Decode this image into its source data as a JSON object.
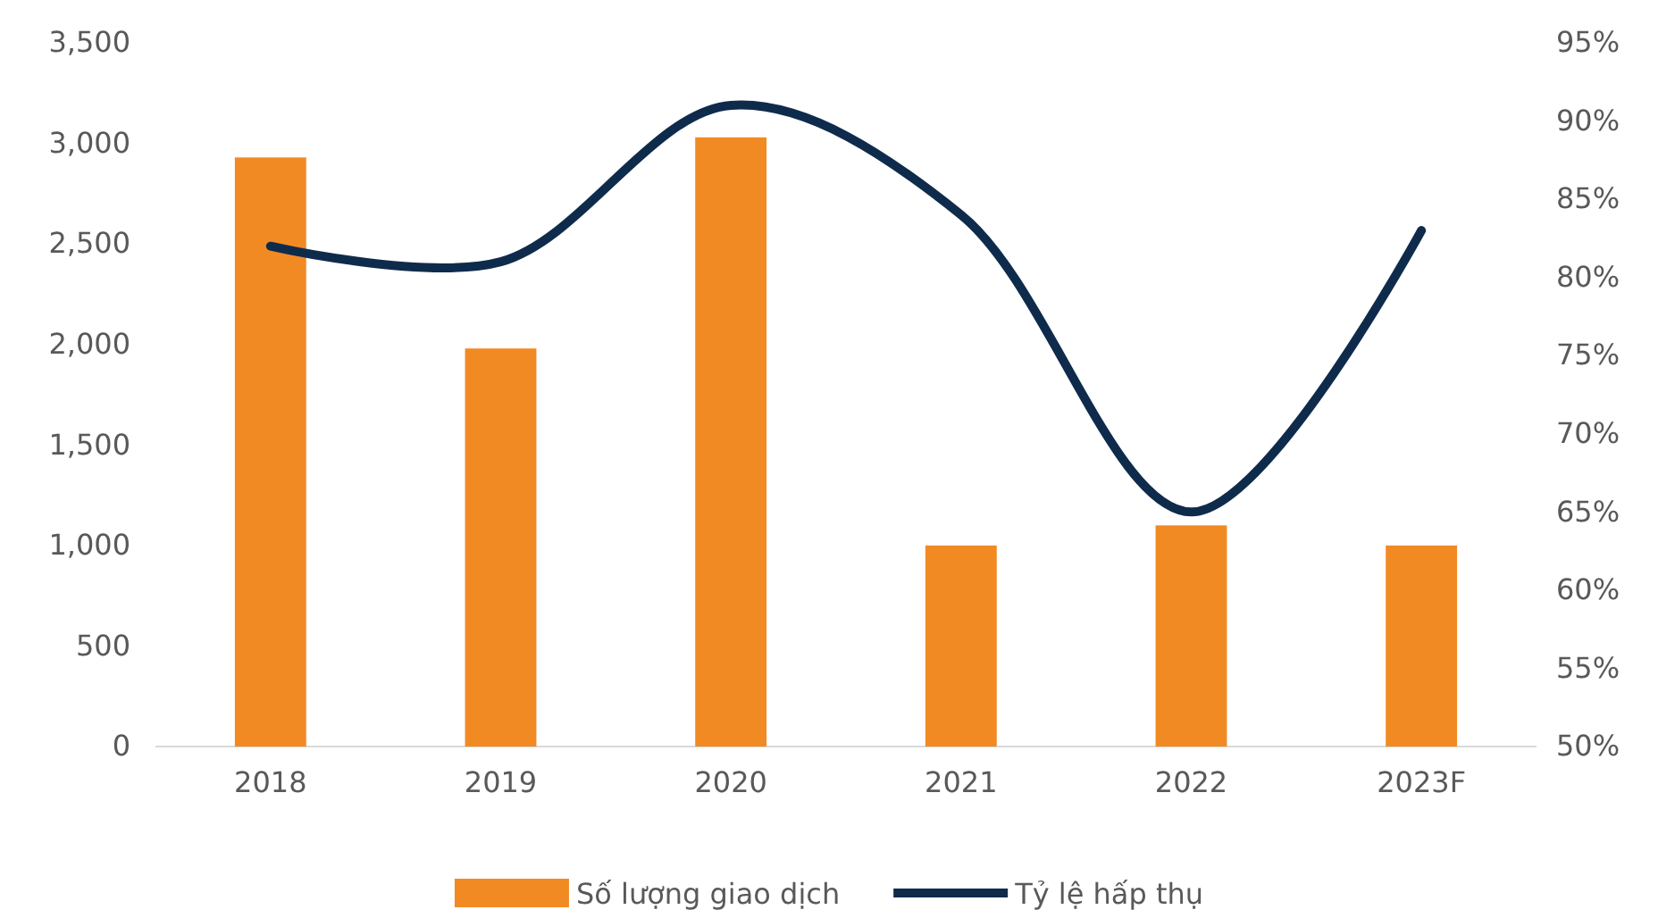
{
  "chart_data": {
    "type": "bar",
    "categories": [
      "2018",
      "2019",
      "2020",
      "2021",
      "2022",
      "2023F"
    ],
    "series": [
      {
        "name": "Số lượng giao dịch",
        "color": "#f28a24",
        "values": [
          2930,
          1980,
          3030,
          1000,
          1100,
          1000
        ]
      },
      {
        "name": "Tỷ lệ hấp thụ",
        "type": "line",
        "axis": "y2",
        "color": "#0f2b4c",
        "values": [
          82,
          81,
          91,
          84,
          65,
          83
        ]
      }
    ],
    "ylim": [
      0,
      3500
    ],
    "yticks": [
      0,
      500,
      {
        "value": 1000,
        "label": "1,000"
      },
      {
        "value": 1500,
        "label": "1,500"
      },
      {
        "value": 2000,
        "label": "2,000"
      },
      {
        "value": 2500,
        "label": "2,500"
      },
      {
        "value": 3000,
        "label": "3,000"
      },
      {
        "value": 3500,
        "label": "3,500"
      }
    ],
    "y2lim": [
      50,
      95
    ],
    "y2ticks": [
      {
        "value": 50,
        "label": "50%"
      },
      {
        "value": 55,
        "label": "55%"
      },
      {
        "value": 60,
        "label": "60%"
      },
      {
        "value": 65,
        "label": "65%"
      },
      {
        "value": 70,
        "label": "70%"
      },
      {
        "value": 75,
        "label": "75%"
      },
      {
        "value": 80,
        "label": "80%"
      },
      {
        "value": 85,
        "label": "85%"
      },
      {
        "value": 90,
        "label": "90%"
      },
      {
        "value": 95,
        "label": "95%"
      }
    ],
    "legend": "bottom",
    "marker": "none",
    "line_style": "solid"
  }
}
